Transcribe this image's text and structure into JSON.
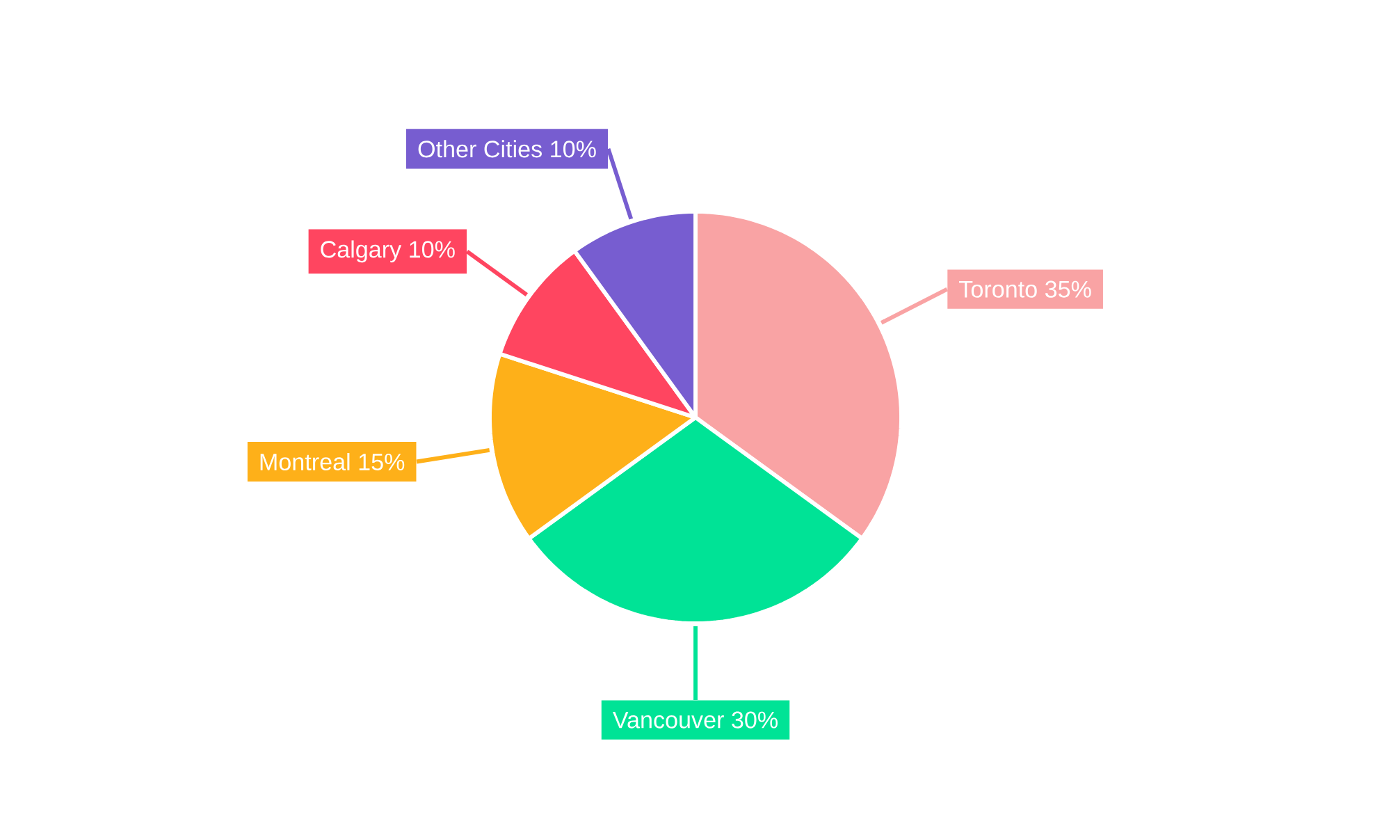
{
  "chart_data": {
    "type": "pie",
    "categories": [
      "Toronto",
      "Vancouver",
      "Montreal",
      "Calgary",
      "Other Cities"
    ],
    "values": [
      35,
      30,
      15,
      10,
      10
    ],
    "value_labels": [
      "35%",
      "30%",
      "15%",
      "10%",
      "10%"
    ],
    "colors": [
      "#f9a3a4",
      "#00e396",
      "#feb019",
      "#ff4560",
      "#775dd0"
    ]
  }
}
